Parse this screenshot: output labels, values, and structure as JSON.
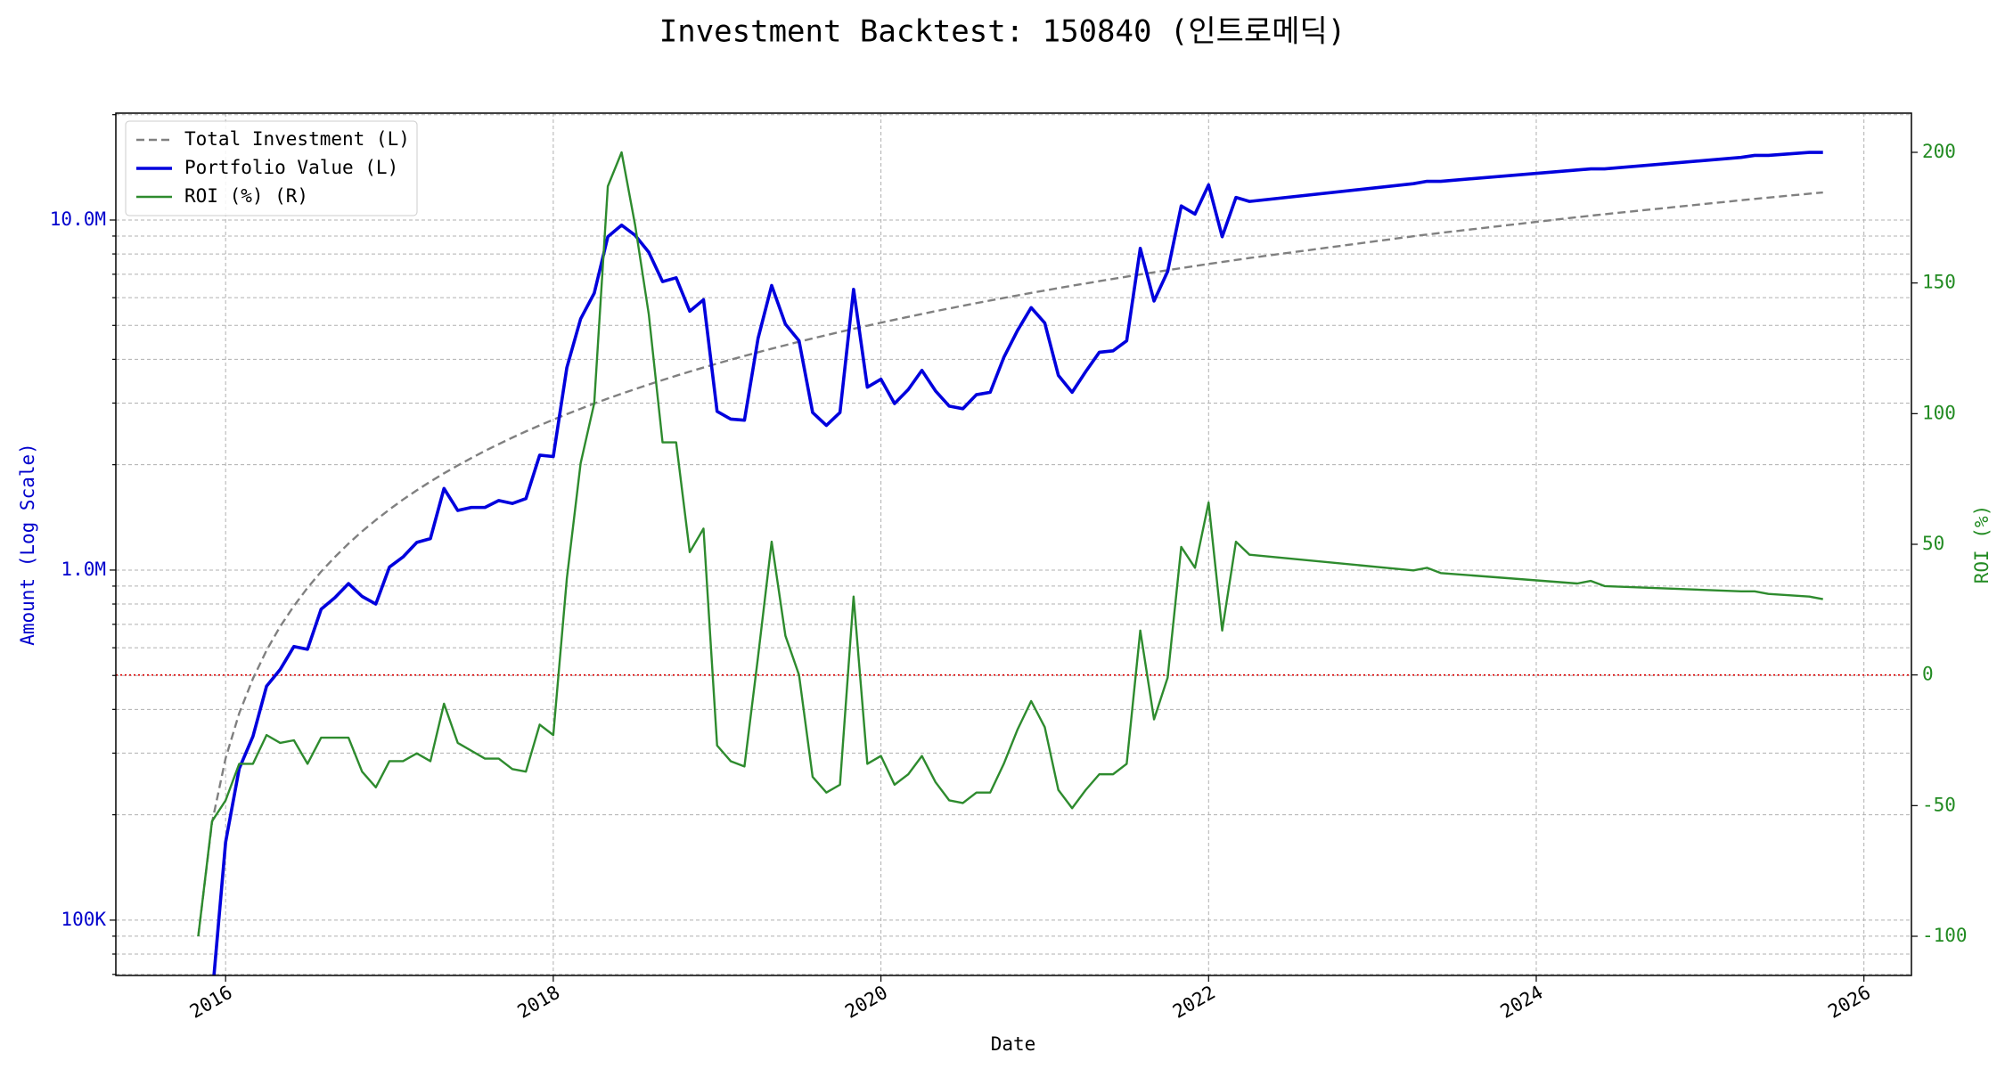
{
  "chart_data": {
    "type": "line",
    "title": "Investment Backtest: 150840 (인트로메딕)",
    "xlabel": "Date",
    "ylabel": "Amount (Log Scale)",
    "y2label": "ROI (%)",
    "x": [
      2015.833,
      2015.917,
      2016.0,
      2016.083,
      2016.167,
      2016.25,
      2016.333,
      2016.417,
      2016.5,
      2016.583,
      2016.667,
      2016.75,
      2016.833,
      2016.917,
      2017.0,
      2017.083,
      2017.167,
      2017.25,
      2017.333,
      2017.417,
      2017.5,
      2017.583,
      2017.667,
      2017.75,
      2017.833,
      2017.917,
      2018.0,
      2018.083,
      2018.167,
      2018.25,
      2018.333,
      2018.417,
      2018.5,
      2018.583,
      2018.667,
      2018.75,
      2018.833,
      2018.917,
      2019.0,
      2019.083,
      2019.167,
      2019.25,
      2019.333,
      2019.417,
      2019.5,
      2019.583,
      2019.667,
      2019.75,
      2019.833,
      2019.917,
      2020.0,
      2020.083,
      2020.167,
      2020.25,
      2020.333,
      2020.417,
      2020.5,
      2020.583,
      2020.667,
      2020.75,
      2020.833,
      2020.917,
      2021.0,
      2021.083,
      2021.167,
      2021.25,
      2021.333,
      2021.417,
      2021.5,
      2021.583,
      2021.667,
      2021.75,
      2021.833,
      2021.917,
      2022.0,
      2022.083,
      2022.167,
      2022.25,
      2023.25,
      2023.333,
      2023.417,
      2024.25,
      2024.333,
      2024.417,
      2025.25,
      2025.333,
      2025.417,
      2025.667,
      2025.75
    ],
    "series": [
      {
        "name": "Total Investment (L)",
        "color": "#808080",
        "linestyle": "dashed",
        "axis": "y",
        "values": [
          90000,
          190000,
          290000,
          390000,
          490000,
          590000,
          690000,
          790000,
          890000,
          990000,
          1090000,
          1190000,
          1290000,
          1390000,
          1490000,
          1590000,
          1690000,
          1790000,
          1890000,
          1990000,
          2090000,
          2190000,
          2290000,
          2390000,
          2490000,
          2590000,
          2690000,
          2790000,
          2890000,
          2990000,
          3090000,
          3190000,
          3290000,
          3390000,
          3490000,
          3590000,
          3690000,
          3790000,
          3890000,
          3990000,
          4090000,
          4190000,
          4290000,
          4390000,
          4490000,
          4590000,
          4690000,
          4790000,
          4890000,
          4990000,
          5090000,
          5190000,
          5290000,
          5390000,
          5490000,
          5590000,
          5690000,
          5790000,
          5890000,
          5990000,
          6090000,
          6190000,
          6290000,
          6390000,
          6490000,
          6590000,
          6690000,
          6790000,
          6890000,
          6990000,
          7090000,
          7190000,
          7290000,
          7390000,
          7490000,
          7590000,
          7690000,
          7790000,
          8990000,
          9090000,
          9190000,
          10190000,
          10290000,
          10390000,
          11390000,
          11490000,
          11590000,
          11890000,
          11990000
        ]
      },
      {
        "name": "Portfolio Value (L)",
        "color": "#0000dd",
        "linestyle": "solid",
        "axis": "y",
        "values": [
          null,
          60000,
          167000,
          271000,
          335000,
          466000,
          520000,
          605000,
          594000,
          773000,
          834000,
          915000,
          841000,
          800000,
          1020000,
          1090000,
          1200000,
          1230000,
          1710000,
          1480000,
          1510000,
          1510000,
          1580000,
          1550000,
          1600000,
          2130000,
          2110000,
          3790000,
          5220000,
          6180000,
          8960000,
          9670000,
          9040000,
          8090000,
          6670000,
          6840000,
          5490000,
          5920000,
          2840000,
          2700000,
          2680000,
          4590000,
          6500000,
          5040000,
          4520000,
          2820000,
          2590000,
          2820000,
          6340000,
          3330000,
          3510000,
          2990000,
          3280000,
          3720000,
          3250000,
          2940000,
          2890000,
          3170000,
          3220000,
          4050000,
          4830000,
          5620000,
          5080000,
          3600000,
          3220000,
          3690000,
          4190000,
          4230000,
          4520000,
          8300000,
          5870000,
          7130000,
          10970000,
          10400000,
          12600000,
          8960000,
          11600000,
          11300000,
          12700000,
          12900000,
          12900000,
          13900000,
          14000000,
          14000000,
          15100000,
          15300000,
          15300000,
          15600000,
          15600000
        ]
      },
      {
        "name": "ROI (%) (R)",
        "color": "#2e8b2e",
        "linestyle": "solid",
        "axis": "y2",
        "values": [
          -100,
          -56,
          -48,
          -34,
          -34,
          -23,
          -26,
          -25,
          -34,
          -24,
          -24,
          -24,
          -37,
          -43,
          -33,
          -33,
          -30,
          -33,
          -11,
          -26,
          -29,
          -32,
          -32,
          -36,
          -37,
          -19,
          -23,
          37,
          81,
          104,
          187,
          200,
          172,
          138,
          89,
          89,
          47,
          56,
          -27,
          -33,
          -35,
          7,
          51,
          15,
          0,
          -39,
          -45,
          -42,
          30,
          -34,
          -31,
          -42,
          -38,
          -31,
          -41,
          -48,
          -49,
          -45,
          -45,
          -34,
          -21,
          -10,
          -20,
          -44,
          -51,
          -44,
          -38,
          -38,
          -34,
          17,
          -17,
          -1,
          49,
          41,
          66,
          17,
          51,
          46,
          40,
          41,
          39,
          35,
          36,
          34,
          32,
          32,
          31,
          30,
          29
        ]
      }
    ],
    "xlim": [
      2015.33,
      2026.29
    ],
    "xticks": [
      2016,
      2018,
      2020,
      2022,
      2024,
      2026
    ],
    "ylim": [
      69500,
      20200000
    ],
    "log_y": true,
    "yticks": [
      {
        "value": 100000,
        "label": "100K"
      },
      {
        "value": 1000000,
        "label": "1.0M"
      },
      {
        "value": 10000000,
        "label": "10.0M"
      }
    ],
    "yminorticks": [
      70000,
      80000,
      90000,
      200000,
      300000,
      400000,
      500000,
      600000,
      700000,
      800000,
      900000,
      2000000,
      3000000,
      4000000,
      5000000,
      6000000,
      7000000,
      8000000,
      9000000,
      20000000
    ],
    "y2lim": [
      -115,
      215
    ],
    "y2ticks": [
      -100,
      -50,
      0,
      50,
      100,
      150,
      200
    ],
    "reference_line": {
      "value": 0,
      "axis": "y2",
      "color": "#dd0000"
    },
    "ylabel_color": "#0000cc",
    "y2label_color": "#228b22",
    "grid": true,
    "legend": "upper left"
  }
}
